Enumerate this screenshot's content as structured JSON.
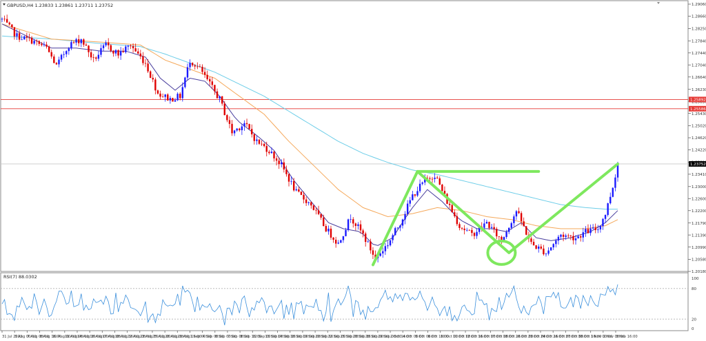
{
  "header": {
    "symbol_line": "GBPUSD,H4  1.23833 1.23861 1.23711 1.23752",
    "rsi_label": "RSI(7) 88.0302"
  },
  "chart_data": {
    "type": "candlestick",
    "symbol": "GBPUSD",
    "timeframe": "H4",
    "ohlc_last": {
      "open": 1.23833,
      "high": 1.23861,
      "low": 1.23711,
      "close": 1.23752
    },
    "ylim": [
      1.2018,
      1.2906
    ],
    "y_ticks": [
      "1.29060",
      "1.28660",
      "1.28250",
      "1.27840",
      "1.27440",
      "1.27040",
      "1.26640",
      "1.26230",
      "1.25830",
      "1.25430",
      "1.25020",
      "1.24620",
      "1.24220",
      "1.23810",
      "1.23410",
      "1.23000",
      "1.22600",
      "1.22200",
      "1.21790",
      "1.21390",
      "1.20990",
      "1.20580",
      "1.20180"
    ],
    "price_labels": [
      {
        "value": 1.25892,
        "label": "1.25892",
        "color": "#e53935"
      },
      {
        "value": 1.25586,
        "label": "1.25586",
        "color": "#e53935"
      },
      {
        "value": 1.23752,
        "label": "1.23752",
        "color": "#000000"
      }
    ],
    "x_labels": [
      "31 Jul 2023",
      "3 Aug 00:00",
      "7 Aug 08:00",
      "8 Aug 16:00",
      "10 Aug 00:00",
      "11 Aug 08:00",
      "14 Aug 16:00",
      "16 Aug 00:00",
      "17 Aug 08:00",
      "18 Aug 16:00",
      "22 Aug 08:00",
      "23 Aug 16:00",
      "25 Aug 00:00",
      "28 Aug 08:00",
      "29 Aug 16:00",
      "1 Sep 00:00",
      "4 Sep 08:00",
      "6 Sep 00:00",
      "7 Sep 08:00",
      "8 Sep 16:00",
      "12 Sep 00:00",
      "13 Sep 08:00",
      "14 Sep 16:00",
      "18 Sep 00:00",
      "19 Sep 08:00",
      "20 Sep 16:00",
      "22 Sep 00:00",
      "25 Sep 08:00",
      "26 Sep 16:00",
      "28 Sep 00:00",
      "29 Sep 08:00",
      "2 Oct 16:00",
      "4 Oct 00:00",
      "5 Oct 08:00",
      "6 Oct 16:00",
      "10 Oct 00:00",
      "11 Oct 08:00",
      "12 Oct 16:00",
      "16 Oct 00:00",
      "17 Oct 08:00",
      "18 Oct 16:00",
      "20 Oct 00:00",
      "23 Oct 08:00",
      "24 Oct 16:00",
      "26 Oct 00:00",
      "27 Oct 08:00",
      "30 Oct 16:00",
      "1 Nov 00:00",
      "2 Nov 08:00",
      "3 Nov 16:00"
    ],
    "price_path": [
      [
        0,
        1.2855
      ],
      [
        6,
        1.28
      ],
      [
        12,
        1.2785
      ],
      [
        18,
        1.276
      ],
      [
        22,
        1.27
      ],
      [
        27,
        1.277
      ],
      [
        32,
        1.279
      ],
      [
        37,
        1.272
      ],
      [
        42,
        1.277
      ],
      [
        47,
        1.274
      ],
      [
        52,
        1.277
      ],
      [
        58,
        1.271
      ],
      [
        63,
        1.261
      ],
      [
        68,
        1.259
      ],
      [
        72,
        1.26
      ],
      [
        76,
        1.272
      ],
      [
        80,
        1.269
      ],
      [
        84,
        1.264
      ],
      [
        88,
        1.259
      ],
      [
        93,
        1.248
      ],
      [
        98,
        1.251
      ],
      [
        103,
        1.245
      ],
      [
        108,
        1.242
      ],
      [
        113,
        1.237
      ],
      [
        119,
        1.228
      ],
      [
        125,
        1.224
      ],
      [
        131,
        1.216
      ],
      [
        136,
        1.211
      ],
      [
        141,
        1.22
      ],
      [
        146,
        1.214
      ],
      [
        151,
        1.206
      ],
      [
        156,
        1.211
      ],
      [
        161,
        1.218
      ],
      [
        166,
        1.227
      ],
      [
        171,
        1.232
      ],
      [
        175,
        1.234
      ],
      [
        180,
        1.225
      ],
      [
        185,
        1.217
      ],
      [
        190,
        1.214
      ],
      [
        196,
        1.218
      ],
      [
        202,
        1.212
      ],
      [
        208,
        1.222
      ],
      [
        214,
        1.211
      ],
      [
        220,
        1.208
      ],
      [
        226,
        1.214
      ],
      [
        232,
        1.213
      ],
      [
        236,
        1.215
      ],
      [
        241,
        1.216
      ],
      [
        244,
        1.221
      ],
      [
        247,
        1.23
      ],
      [
        249,
        1.2375
      ]
    ],
    "ma_fast_path": [
      [
        0,
        1.284
      ],
      [
        10,
        1.28
      ],
      [
        20,
        1.276
      ],
      [
        30,
        1.276
      ],
      [
        40,
        1.275
      ],
      [
        50,
        1.275
      ],
      [
        58,
        1.273
      ],
      [
        64,
        1.266
      ],
      [
        70,
        1.262
      ],
      [
        76,
        1.266
      ],
      [
        82,
        1.265
      ],
      [
        88,
        1.26
      ],
      [
        95,
        1.252
      ],
      [
        103,
        1.247
      ],
      [
        110,
        1.242
      ],
      [
        118,
        1.232
      ],
      [
        125,
        1.225
      ],
      [
        132,
        1.218
      ],
      [
        138,
        1.216
      ],
      [
        145,
        1.215
      ],
      [
        151,
        1.21
      ],
      [
        158,
        1.213
      ],
      [
        165,
        1.222
      ],
      [
        172,
        1.229
      ],
      [
        178,
        1.225
      ],
      [
        185,
        1.219
      ],
      [
        192,
        1.216
      ],
      [
        198,
        1.216
      ],
      [
        204,
        1.215
      ],
      [
        210,
        1.218
      ],
      [
        216,
        1.213
      ],
      [
        222,
        1.212
      ],
      [
        230,
        1.213
      ],
      [
        238,
        1.215
      ],
      [
        244,
        1.218
      ],
      [
        249,
        1.222
      ]
    ],
    "ma_mid_path": [
      [
        0,
        1.284
      ],
      [
        20,
        1.279
      ],
      [
        40,
        1.278
      ],
      [
        56,
        1.277
      ],
      [
        66,
        1.272
      ],
      [
        76,
        1.269
      ],
      [
        86,
        1.266
      ],
      [
        96,
        1.26
      ],
      [
        106,
        1.254
      ],
      [
        116,
        1.245
      ],
      [
        126,
        1.237
      ],
      [
        136,
        1.229
      ],
      [
        146,
        1.223
      ],
      [
        156,
        1.22
      ],
      [
        166,
        1.221
      ],
      [
        176,
        1.223
      ],
      [
        186,
        1.222
      ],
      [
        196,
        1.22
      ],
      [
        206,
        1.219
      ],
      [
        216,
        1.217
      ],
      [
        226,
        1.216
      ],
      [
        236,
        1.216
      ],
      [
        244,
        1.217
      ],
      [
        249,
        1.219
      ]
    ],
    "ma_slow_path": [
      [
        0,
        1.28
      ],
      [
        20,
        1.279
      ],
      [
        40,
        1.2775
      ],
      [
        56,
        1.2765
      ],
      [
        66,
        1.274
      ],
      [
        76,
        1.271
      ],
      [
        86,
        1.268
      ],
      [
        96,
        1.264
      ],
      [
        106,
        1.26
      ],
      [
        116,
        1.255
      ],
      [
        126,
        1.25
      ],
      [
        136,
        1.245
      ],
      [
        146,
        1.241
      ],
      [
        156,
        1.238
      ],
      [
        166,
        1.2355
      ],
      [
        176,
        1.234
      ],
      [
        186,
        1.232
      ],
      [
        196,
        1.23
      ],
      [
        206,
        1.228
      ],
      [
        216,
        1.226
      ],
      [
        226,
        1.224
      ],
      [
        236,
        1.223
      ],
      [
        244,
        1.2225
      ],
      [
        249,
        1.2225
      ]
    ],
    "drawn_annotations": {
      "line_color": "#7ee85e",
      "zigzag": [
        [
          150,
          1.204
        ],
        [
          168,
          1.235
        ],
        [
          205,
          1.208
        ],
        [
          249,
          1.2375
        ]
      ],
      "neckline": [
        [
          168,
          1.235
        ],
        [
          217,
          1.235
        ]
      ],
      "circle_center": [
        202,
        1.208
      ]
    },
    "rsi": {
      "label": "RSI(7) 88.0302",
      "ylim": [
        0,
        100
      ],
      "levels": [
        80,
        20
      ],
      "ticks": [
        "100",
        "80",
        "20",
        "0"
      ],
      "value_last": 88.03
    }
  }
}
